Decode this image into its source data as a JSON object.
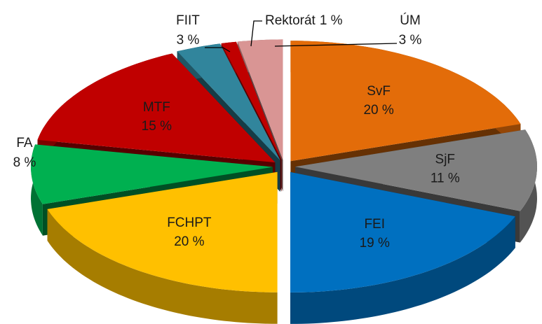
{
  "chart_data": {
    "type": "pie3d",
    "categories": [
      "SvF",
      "SjF",
      "FEI",
      "FCHPT",
      "FA",
      "MTF",
      "FIIT",
      "Rektorát",
      "ÚM"
    ],
    "values": [
      20,
      11,
      19,
      20,
      8,
      15,
      3,
      1,
      3
    ],
    "value_labels": [
      "20 %",
      "11 %",
      "19 %",
      "20 %",
      "8 %",
      "15 %",
      "3 %",
      "1 %",
      "3 %"
    ],
    "colors": [
      "#e36c09",
      "#7f7f7f",
      "#0070c0",
      "#ffc000",
      "#00b050",
      "#c00000",
      "#31859c",
      "#c00000",
      "#d99594"
    ]
  }
}
